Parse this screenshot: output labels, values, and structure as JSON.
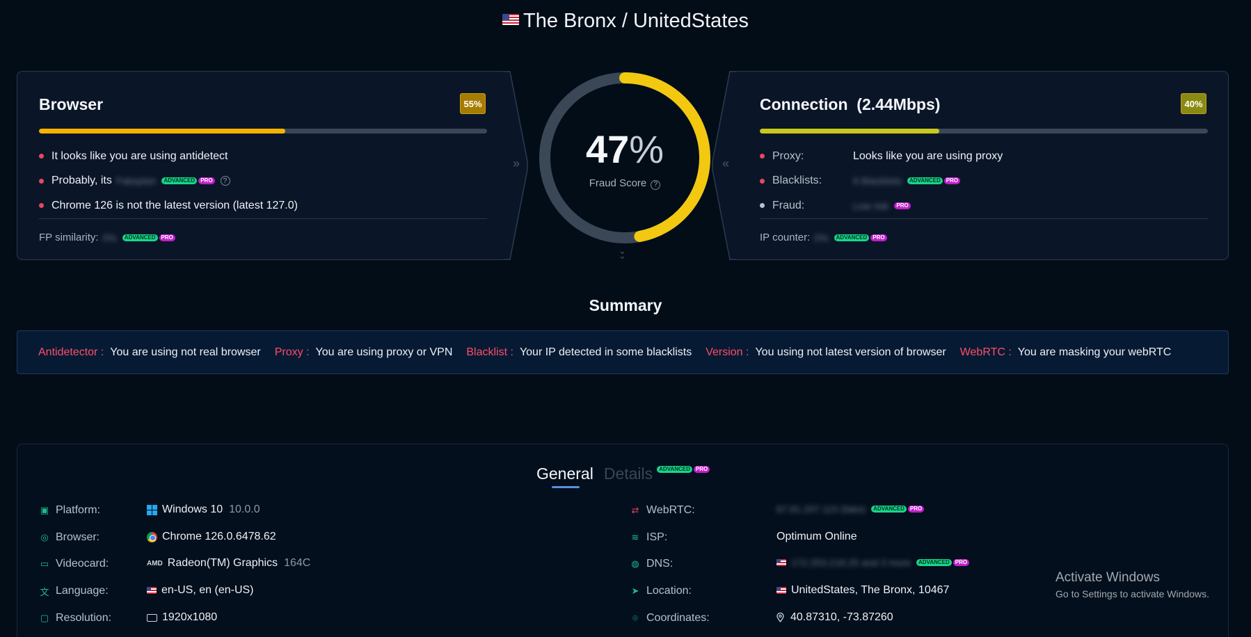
{
  "header": {
    "title": "The Bronx / UnitedStates"
  },
  "browser_card": {
    "title": "Browser",
    "percent_label": "55%",
    "progress": 0.55,
    "color": "#f5b400",
    "items": [
      {
        "text": "It looks like you are using antidetect"
      },
      {
        "prefix": "Probably, its"
      },
      {
        "text": "Chrome 126 is not the latest version (latest 127.0)"
      }
    ],
    "footer_label": "FP similarity:"
  },
  "connection_card": {
    "title": "Connection",
    "speed": "(2.44Mbps)",
    "percent_label": "40%",
    "progress": 0.4,
    "color": "#c9c81d",
    "items": [
      {
        "label": "Proxy:",
        "value": "Looks like you are using proxy"
      },
      {
        "label": "Blacklists:"
      },
      {
        "label": "Fraud:"
      }
    ],
    "footer_label": "IP counter:"
  },
  "fraud_score": {
    "value": "47",
    "unit": "%",
    "label": "Fraud Score",
    "fraction": 0.47,
    "color": "#f2c811"
  },
  "tags": {
    "advanced": "ADVANCED",
    "pro": "PRO"
  },
  "summary": {
    "title": "Summary",
    "items": [
      {
        "key": "Antidetector :",
        "value": "You are using not real browser"
      },
      {
        "key": "Proxy :",
        "value": "You are using proxy or VPN"
      },
      {
        "key": "Blacklist :",
        "value": "Your IP detected in some blacklists"
      },
      {
        "key": "Version :",
        "value": "You using not latest version of browser"
      },
      {
        "key": "WebRTC :",
        "value": "You are masking your webRTC"
      }
    ]
  },
  "tabs": {
    "general": "General",
    "details": "Details"
  },
  "general": {
    "left": [
      {
        "key": "Platform:",
        "value": "Windows 10",
        "extra": "10.0.0"
      },
      {
        "key": "Browser:",
        "value": "Chrome 126.0.6478.62"
      },
      {
        "key": "Videocard:",
        "icon_text": "AMD",
        "value": "Radeon(TM) Graphics",
        "extra": "164C"
      },
      {
        "key": "Language:",
        "value": "en-US, en (en-US)"
      },
      {
        "key": "Resolution:",
        "value": "1920x1080"
      }
    ],
    "right": [
      {
        "key": "WebRTC:"
      },
      {
        "key": "ISP:",
        "value": "Optimum Online"
      },
      {
        "key": "DNS:"
      },
      {
        "key": "Location:",
        "value": "UnitedStates, The Bronx, 10467"
      },
      {
        "key": "Coordinates:",
        "value": "40.87310, -73.87260"
      }
    ]
  },
  "activate_windows": {
    "title": "Activate Windows",
    "subtitle": "Go to Settings to activate Windows."
  }
}
